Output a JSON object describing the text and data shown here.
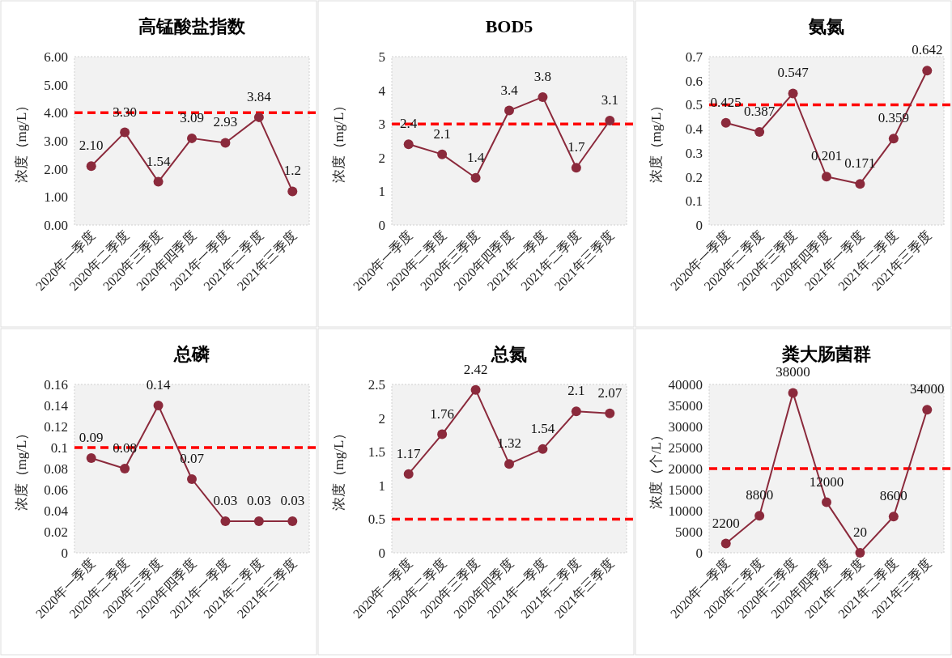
{
  "chart_data": [
    {
      "type": "line",
      "title": "高锰酸盐指数",
      "ylabel": "浓度（mg/L）",
      "categories": [
        "2020年一季度",
        "2020年二季度",
        "2020年三季度",
        "2020年四季度",
        "2021年一季度",
        "2021年二季度",
        "2021年三季度"
      ],
      "series": [
        {
          "color": "#8b2a3c",
          "values": [
            2.1,
            3.3,
            1.54,
            3.09,
            2.93,
            3.84,
            1.2
          ],
          "value_labels": [
            "2.10",
            "3.30",
            "1.54",
            "3.09",
            "2.93",
            "3.84",
            "1.2"
          ]
        }
      ],
      "ylim": [
        0,
        6
      ],
      "yticks": [
        {
          "value": 0,
          "label": "0.00"
        },
        {
          "value": 1,
          "label": "1.00"
        },
        {
          "value": 2,
          "label": "2.00"
        },
        {
          "value": 3,
          "label": "3.00"
        },
        {
          "value": 4,
          "label": "4.00"
        },
        {
          "value": 5,
          "label": "5.00"
        },
        {
          "value": 6,
          "label": "6.00"
        }
      ],
      "ref_lines": [
        {
          "axis": "y",
          "value": 4,
          "color": "#ff0000",
          "line_style": "dashed"
        }
      ],
      "marker": "circle"
    },
    {
      "type": "line",
      "title": "BOD5",
      "ylabel": "浓度（mg/L）",
      "categories": [
        "2020年一季度",
        "2020年二季度",
        "2020年三季度",
        "2020年四季度",
        "2021年一季度",
        "2021年二季度",
        "2021年三季度"
      ],
      "series": [
        {
          "color": "#8b2a3c",
          "values": [
            2.4,
            2.1,
            1.4,
            3.4,
            3.8,
            1.7,
            3.1
          ]
        }
      ],
      "data_labels": true,
      "ylim": [
        0,
        5
      ],
      "yticks": [
        0,
        1,
        2,
        3,
        4,
        5
      ],
      "ref_lines": [
        {
          "axis": "y",
          "value": 3,
          "color": "#ff0000",
          "line_style": "dashed"
        }
      ],
      "marker": "circle"
    },
    {
      "type": "line",
      "title": "氨氮",
      "ylabel": "浓度（mg/L）",
      "categories": [
        "2020年一季度",
        "2020年二季度",
        "2020年三季度",
        "2020年四季度",
        "2021年一季度",
        "2021年二季度",
        "2021年三季度"
      ],
      "series": [
        {
          "color": "#8b2a3c",
          "values": [
            0.425,
            0.387,
            0.547,
            0.201,
            0.171,
            0.359,
            0.642
          ]
        }
      ],
      "data_labels": true,
      "ylim": [
        0,
        0.7
      ],
      "yticks": [
        0,
        0.1,
        0.2,
        0.3,
        0.4,
        0.5,
        0.6,
        0.7
      ],
      "ref_lines": [
        {
          "axis": "y",
          "value": 0.5,
          "color": "#ff0000",
          "line_style": "dashed"
        }
      ],
      "marker": "circle"
    },
    {
      "type": "line",
      "title": "总磷",
      "ylabel": "浓度（mg/L）",
      "categories": [
        "2020年一季度",
        "2020年二季度",
        "2020年三季度",
        "2020年四季度",
        "2021年一季度",
        "2021年二季度",
        "2021年三季度"
      ],
      "series": [
        {
          "color": "#8b2a3c",
          "values": [
            0.09,
            0.08,
            0.14,
            0.07,
            0.03,
            0.03,
            0.03
          ]
        }
      ],
      "data_labels": true,
      "ylim": [
        0,
        0.16
      ],
      "yticks": [
        0,
        0.02,
        0.04,
        0.06,
        0.08,
        0.1,
        0.12,
        0.14,
        0.16
      ],
      "ref_lines": [
        {
          "axis": "y",
          "value": 0.1,
          "color": "#ff0000",
          "line_style": "dashed"
        }
      ],
      "marker": "circle"
    },
    {
      "type": "line",
      "title": "总氮",
      "ylabel": "浓度（mg/L）",
      "categories": [
        "2020年一季度",
        "2020年二季度",
        "2020年三季度",
        "2020年四季度",
        "2021年一季度",
        "2021年二季度",
        "2021年三季度"
      ],
      "series": [
        {
          "color": "#8b2a3c",
          "values": [
            1.17,
            1.76,
            2.42,
            1.32,
            1.54,
            2.1,
            2.07
          ]
        }
      ],
      "data_labels": true,
      "ylim": [
        0,
        2.5
      ],
      "yticks": [
        0,
        0.5,
        1,
        1.5,
        2,
        2.5
      ],
      "ref_lines": [
        {
          "axis": "y",
          "value": 0.5,
          "color": "#ff0000",
          "line_style": "dashed"
        }
      ],
      "marker": "circle"
    },
    {
      "type": "line",
      "title": "粪大肠菌群",
      "ylabel": "浓度（个/L）",
      "categories": [
        "2020年一季度",
        "2020年二季度",
        "2020年三季度",
        "2020年四季度",
        "2021年一季度",
        "2021年二季度",
        "2021年三季度"
      ],
      "series": [
        {
          "color": "#8b2a3c",
          "values": [
            2200,
            8800,
            38000,
            12000,
            20,
            8600,
            34000
          ]
        }
      ],
      "data_labels": true,
      "ylim": [
        0,
        40000
      ],
      "yticks": [
        0,
        5000,
        10000,
        15000,
        20000,
        25000,
        30000,
        35000,
        40000
      ],
      "ref_lines": [
        {
          "axis": "y",
          "value": 20000,
          "color": "#ff0000",
          "line_style": "dashed"
        }
      ],
      "marker": "circle"
    }
  ]
}
